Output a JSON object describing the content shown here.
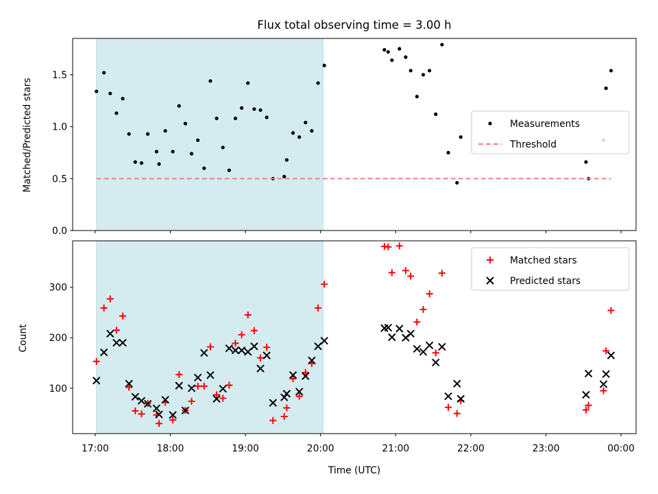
{
  "chart_data": [
    {
      "type": "scatter",
      "title": "Flux total observing time = 3.00 h",
      "xlabel": "",
      "ylabel": "Matched/Predicted stars",
      "ylim": [
        0,
        1.85
      ],
      "xlim": [
        "16:42",
        "00:12"
      ],
      "yticks": [
        0.0,
        0.5,
        1.0,
        1.5
      ],
      "ytick_labels": [
        "0.0",
        "0.5",
        "1.0",
        "1.5"
      ],
      "shaded_interval": [
        "17:01",
        "20:02"
      ],
      "shade_color": "#d4ebf0",
      "legend_position": "center right",
      "series": [
        {
          "name": "Measurements",
          "marker": "dot",
          "color": "#000000",
          "points": [
            [
              "17:01",
              1.34
            ],
            [
              "17:07",
              1.52
            ],
            [
              "17:12",
              1.32
            ],
            [
              "17:17",
              1.13
            ],
            [
              "17:22",
              1.27
            ],
            [
              "17:27",
              0.93
            ],
            [
              "17:32",
              0.66
            ],
            [
              "17:37",
              0.65
            ],
            [
              "17:42",
              0.93
            ],
            [
              "17:49",
              0.76
            ],
            [
              "17:51",
              0.64
            ],
            [
              "17:56",
              0.96
            ],
            [
              "18:02",
              0.76
            ],
            [
              "18:07",
              1.2
            ],
            [
              "18:12",
              1.03
            ],
            [
              "18:17",
              0.74
            ],
            [
              "18:22",
              0.87
            ],
            [
              "18:27",
              0.6
            ],
            [
              "18:32",
              1.44
            ],
            [
              "18:37",
              1.08
            ],
            [
              "18:42",
              0.8
            ],
            [
              "18:47",
              0.58
            ],
            [
              "18:52",
              1.08
            ],
            [
              "18:57",
              1.18
            ],
            [
              "19:02",
              1.42
            ],
            [
              "19:07",
              1.17
            ],
            [
              "19:12",
              1.16
            ],
            [
              "19:17",
              1.09
            ],
            [
              "19:22",
              0.5
            ],
            [
              "19:31",
              0.52
            ],
            [
              "19:33",
              0.68
            ],
            [
              "19:38",
              0.94
            ],
            [
              "19:43",
              0.9
            ],
            [
              "19:48",
              1.04
            ],
            [
              "19:53",
              0.96
            ],
            [
              "19:58",
              1.42
            ],
            [
              "20:03",
              1.59
            ],
            [
              "20:51",
              1.74
            ],
            [
              "20:54",
              1.72
            ],
            [
              "20:57",
              1.64
            ],
            [
              "21:03",
              1.75
            ],
            [
              "21:08",
              1.67
            ],
            [
              "21:12",
              1.54
            ],
            [
              "21:17",
              1.29
            ],
            [
              "21:22",
              1.5
            ],
            [
              "21:27",
              1.54
            ],
            [
              "21:32",
              1.12
            ],
            [
              "21:37",
              1.79
            ],
            [
              "21:42",
              0.75
            ],
            [
              "21:49",
              0.46
            ],
            [
              "21:52",
              0.9
            ],
            [
              "23:32",
              0.66
            ],
            [
              "23:34",
              0.5
            ],
            [
              "23:46",
              0.87
            ],
            [
              "23:48",
              1.37
            ],
            [
              "23:52",
              1.54
            ]
          ]
        },
        {
          "name": "Threshold",
          "style": "dashed",
          "color": "#f08080",
          "points": [
            [
              "17:01",
              0.5
            ],
            [
              "23:52",
              0.5
            ]
          ]
        }
      ]
    },
    {
      "type": "scatter",
      "title": "",
      "xlabel": "Time (UTC)",
      "ylabel": "Count",
      "ylim": [
        10,
        392
      ],
      "xlim": [
        "16:42",
        "00:12"
      ],
      "yticks": [
        100,
        200,
        300
      ],
      "ytick_labels": [
        "100",
        "200",
        "300"
      ],
      "xticks": [
        "17:00",
        "18:00",
        "19:00",
        "20:00",
        "21:00",
        "22:00",
        "23:00",
        "00:00"
      ],
      "shaded_interval": [
        "17:01",
        "20:02"
      ],
      "shade_color": "#d4ebf0",
      "legend_position": "upper right",
      "series": [
        {
          "name": "Matched stars",
          "marker": "plus",
          "color": "#ff0000",
          "points": [
            [
              "17:01",
              153
            ],
            [
              "17:07",
              259
            ],
            [
              "17:12",
              277
            ],
            [
              "17:17",
              215
            ],
            [
              "17:22",
              243
            ],
            [
              "17:27",
              102
            ],
            [
              "17:32",
              55
            ],
            [
              "17:37",
              49
            ],
            [
              "17:42",
              70
            ],
            [
              "17:49",
              47
            ],
            [
              "17:51",
              30
            ],
            [
              "17:56",
              72
            ],
            [
              "18:02",
              37
            ],
            [
              "18:07",
              127
            ],
            [
              "18:12",
              56
            ],
            [
              "18:17",
              74
            ],
            [
              "18:22",
              104
            ],
            [
              "18:27",
              104
            ],
            [
              "18:32",
              182
            ],
            [
              "18:37",
              87
            ],
            [
              "18:42",
              80
            ],
            [
              "18:47",
              106
            ],
            [
              "18:52",
              189
            ],
            [
              "18:57",
              206
            ],
            [
              "19:02",
              245
            ],
            [
              "19:07",
              214
            ],
            [
              "19:12",
              160
            ],
            [
              "19:17",
              181
            ],
            [
              "19:22",
              36
            ],
            [
              "19:31",
              44
            ],
            [
              "19:33",
              61
            ],
            [
              "19:38",
              119
            ],
            [
              "19:43",
              84
            ],
            [
              "19:48",
              131
            ],
            [
              "19:53",
              149
            ],
            [
              "19:58",
              259
            ],
            [
              "20:03",
              306
            ],
            [
              "20:51",
              381
            ],
            [
              "20:54",
              380
            ],
            [
              "20:57",
              329
            ],
            [
              "21:03",
              382
            ],
            [
              "21:08",
              333
            ],
            [
              "21:12",
              322
            ],
            [
              "21:17",
              231
            ],
            [
              "21:22",
              256
            ],
            [
              "21:27",
              287
            ],
            [
              "21:32",
              170
            ],
            [
              "21:37",
              328
            ],
            [
              "21:42",
              62
            ],
            [
              "21:49",
              50
            ],
            [
              "21:52",
              75
            ],
            [
              "23:32",
              57
            ],
            [
              "23:34",
              66
            ],
            [
              "23:46",
              95
            ],
            [
              "23:48",
              174
            ],
            [
              "23:52",
              254
            ]
          ]
        },
        {
          "name": "Predicted stars",
          "marker": "x",
          "color": "#000000",
          "points": [
            [
              "17:01",
              115
            ],
            [
              "17:07",
              171
            ],
            [
              "17:12",
              208
            ],
            [
              "17:17",
              190
            ],
            [
              "17:22",
              190
            ],
            [
              "17:27",
              109
            ],
            [
              "17:32",
              83
            ],
            [
              "17:37",
              75
            ],
            [
              "17:42",
              69
            ],
            [
              "17:49",
              60
            ],
            [
              "17:51",
              48
            ],
            [
              "17:56",
              77
            ],
            [
              "18:02",
              47
            ],
            [
              "18:07",
              105
            ],
            [
              "18:12",
              56
            ],
            [
              "18:17",
              100
            ],
            [
              "18:22",
              121
            ],
            [
              "18:27",
              170
            ],
            [
              "18:32",
              126
            ],
            [
              "18:37",
              79
            ],
            [
              "18:42",
              99
            ],
            [
              "18:47",
              179
            ],
            [
              "18:52",
              175
            ],
            [
              "18:57",
              175
            ],
            [
              "19:02",
              172
            ],
            [
              "19:07",
              183
            ],
            [
              "19:12",
              139
            ],
            [
              "19:17",
              165
            ],
            [
              "19:22",
              71
            ],
            [
              "19:31",
              82
            ],
            [
              "19:33",
              89
            ],
            [
              "19:38",
              126
            ],
            [
              "19:43",
              93
            ],
            [
              "19:48",
              124
            ],
            [
              "19:53",
              155
            ],
            [
              "19:58",
              183
            ],
            [
              "20:03",
              194
            ],
            [
              "20:51",
              219
            ],
            [
              "20:54",
              220
            ],
            [
              "20:57",
              201
            ],
            [
              "21:03",
              218
            ],
            [
              "21:08",
              200
            ],
            [
              "21:12",
              208
            ],
            [
              "21:17",
              178
            ],
            [
              "21:22",
              172
            ],
            [
              "21:27",
              185
            ],
            [
              "21:32",
              151
            ],
            [
              "21:37",
              182
            ],
            [
              "21:42",
              84
            ],
            [
              "21:49",
              109
            ],
            [
              "21:52",
              79
            ],
            [
              "23:32",
              87
            ],
            [
              "23:34",
              129
            ],
            [
              "23:46",
              108
            ],
            [
              "23:48",
              128
            ],
            [
              "23:52",
              165
            ]
          ]
        }
      ]
    }
  ]
}
